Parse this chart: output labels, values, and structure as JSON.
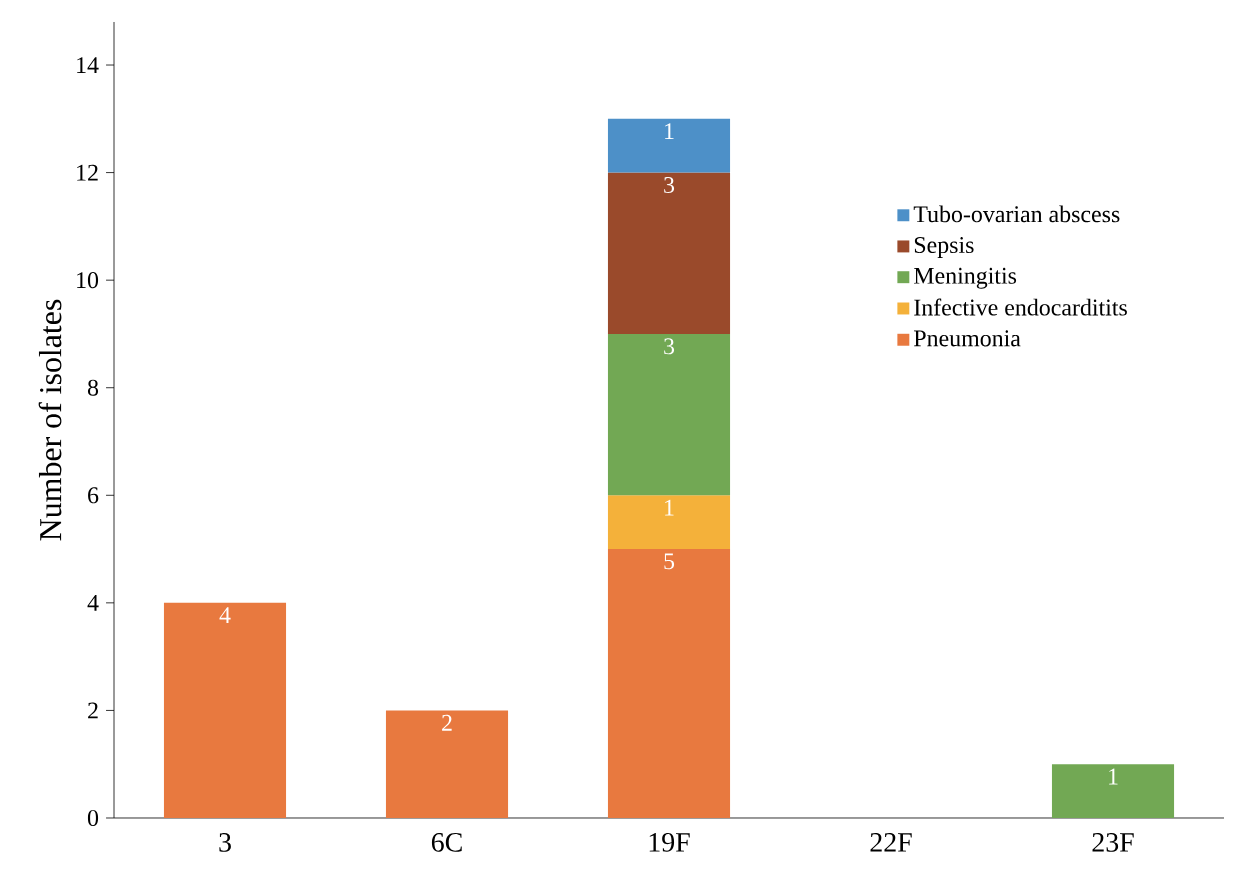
{
  "chart_data": {
    "type": "bar",
    "stacked": true,
    "ylabel": "Number of isolates",
    "categories": [
      "3",
      "6C",
      "19F",
      "22F",
      "23F"
    ],
    "series": [
      {
        "name": "Pneumonia",
        "color": "#e8793f",
        "values": [
          4,
          2,
          5,
          0,
          0
        ],
        "value_labels": [
          "4",
          "2",
          "5",
          null,
          null
        ]
      },
      {
        "name": "Infective endocarditits",
        "color": "#f4b13a",
        "values": [
          0,
          0,
          1,
          0,
          0
        ],
        "value_labels": [
          null,
          null,
          "1",
          null,
          null
        ]
      },
      {
        "name": "Meningitis",
        "color": "#72a854",
        "values": [
          0,
          0,
          3,
          0,
          1
        ],
        "value_labels": [
          null,
          null,
          "3",
          null,
          "1"
        ]
      },
      {
        "name": "Sepsis",
        "color": "#9a4a2b",
        "values": [
          0,
          0,
          3,
          0,
          0
        ],
        "value_labels": [
          null,
          null,
          "3",
          null,
          null
        ]
      },
      {
        "name": "Tubo-ovarian abscess",
        "color": "#4d90c8",
        "values": [
          0,
          0,
          1,
          0,
          0
        ],
        "value_labels": [
          null,
          null,
          "1",
          null,
          null
        ]
      }
    ],
    "ylim": [
      0,
      14.8
    ],
    "yticks": [
      0,
      2,
      4,
      6,
      8,
      10,
      12,
      14
    ],
    "legend": "right",
    "grid": false
  }
}
